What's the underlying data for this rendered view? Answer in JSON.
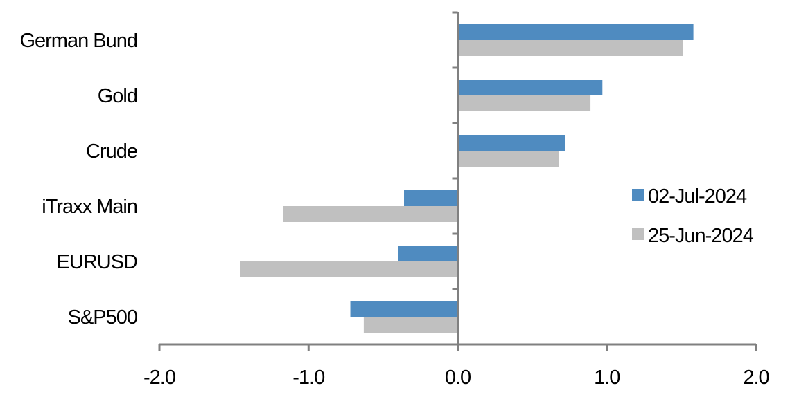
{
  "chart_data": {
    "type": "bar",
    "orientation": "horizontal",
    "title": "",
    "xlabel": "",
    "ylabel": "",
    "categories": [
      "German Bund",
      "Gold",
      "Crude",
      "iTraxx Main",
      "EURUSD",
      "S&P500"
    ],
    "series": [
      {
        "name": "02-Jul-2024",
        "color": "#4F8BC0",
        "values": [
          1.58,
          0.97,
          0.72,
          -0.36,
          -0.4,
          -0.72
        ]
      },
      {
        "name": "25-Jun-2024",
        "color": "#C0C0C0",
        "values": [
          1.51,
          0.89,
          0.68,
          -1.17,
          -1.46,
          -0.63
        ]
      }
    ],
    "xlim": [
      -2.0,
      2.0
    ],
    "xticks": [
      "-2.0",
      "-1.0",
      "0.0",
      "1.0",
      "2.0"
    ],
    "grid": false,
    "legend_position": "right"
  }
}
